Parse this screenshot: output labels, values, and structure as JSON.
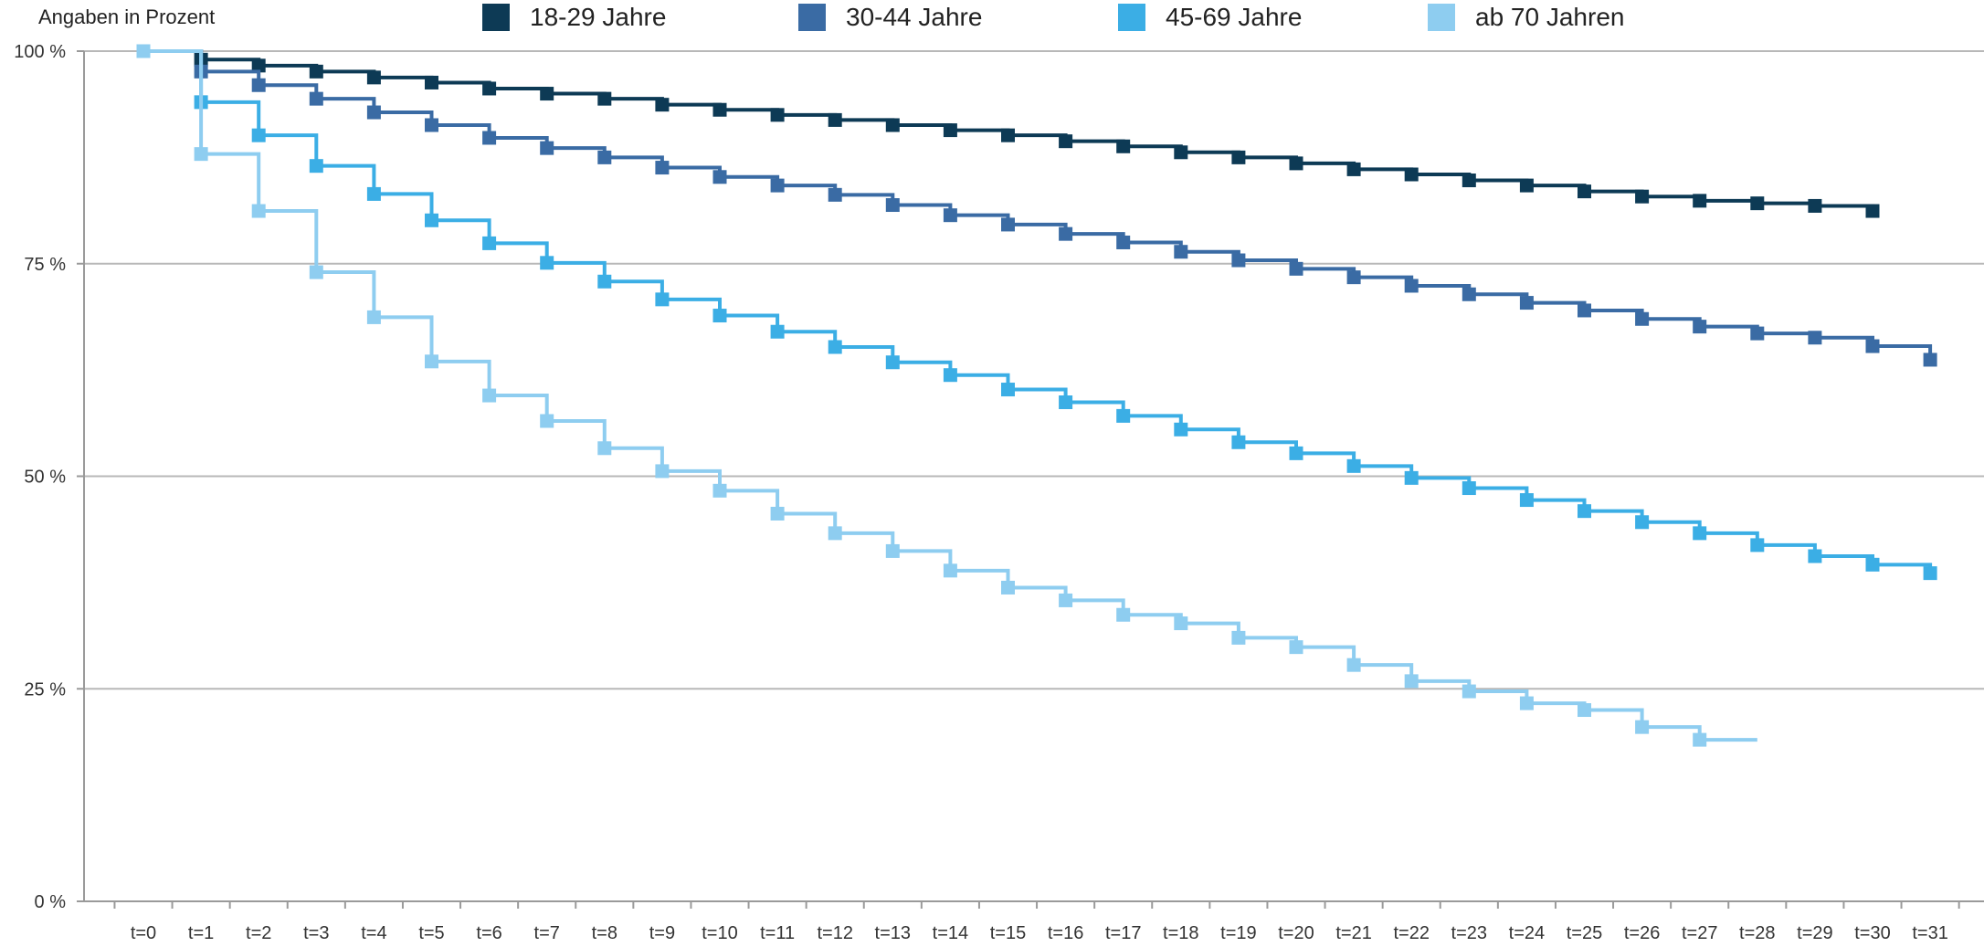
{
  "chart_data": {
    "type": "line",
    "subtitle": "Angaben in Prozent",
    "x_categories": [
      "t=0",
      "t=1",
      "t=2",
      "t=3",
      "t=4",
      "t=5",
      "t=6",
      "t=7",
      "t=8",
      "t=9",
      "t=10",
      "t=11",
      "t=12",
      "t=13",
      "t=14",
      "t=15",
      "t=16",
      "t=17",
      "t=18",
      "t=19",
      "t=20",
      "t=21",
      "t=22",
      "t=23",
      "t=24",
      "t=25",
      "t=26",
      "t=27",
      "t=28",
      "t=29",
      "t=30",
      "t=31"
    ],
    "y_ticks": [
      {
        "value": 0,
        "label": "0 %"
      },
      {
        "value": 25,
        "label": "25 %"
      },
      {
        "value": 50,
        "label": "50 %"
      },
      {
        "value": 75,
        "label": "75 %"
      },
      {
        "value": 100,
        "label": "100 %"
      }
    ],
    "ylim": [
      0,
      100
    ],
    "grid": true,
    "legend_position": "top",
    "step": true,
    "series": [
      {
        "name": "18-29 Jahre",
        "color": "#0d3a55",
        "values": [
          100,
          99.0,
          98.3,
          97.6,
          96.9,
          96.3,
          95.6,
          95.0,
          94.4,
          93.7,
          93.1,
          92.5,
          91.9,
          91.3,
          90.7,
          90.1,
          89.4,
          88.8,
          88.1,
          87.5,
          86.8,
          86.1,
          85.5,
          84.8,
          84.2,
          83.5,
          82.9,
          82.4,
          82.1,
          81.8,
          81.2,
          null
        ]
      },
      {
        "name": "30-44 Jahre",
        "color": "#3a6ba4",
        "values": [
          100,
          97.6,
          96.0,
          94.4,
          92.8,
          91.3,
          89.8,
          88.6,
          87.5,
          86.3,
          85.2,
          84.2,
          83.1,
          81.9,
          80.7,
          79.6,
          78.5,
          77.5,
          76.4,
          75.4,
          74.4,
          73.4,
          72.4,
          71.4,
          70.4,
          69.5,
          68.5,
          67.6,
          66.8,
          66.3,
          65.3,
          63.7
        ]
      },
      {
        "name": "45-69 Jahre",
        "color": "#3baee5",
        "values": [
          100,
          94.0,
          90.1,
          86.5,
          83.2,
          80.1,
          77.4,
          75.1,
          72.9,
          70.8,
          68.9,
          67.0,
          65.2,
          63.4,
          61.9,
          60.2,
          58.7,
          57.1,
          55.5,
          54.0,
          52.7,
          51.2,
          49.8,
          48.6,
          47.2,
          45.9,
          44.6,
          43.3,
          41.9,
          40.6,
          39.6,
          38.6
        ]
      },
      {
        "name": "ab 70 Jahren",
        "color": "#8ecdf0",
        "values": [
          100,
          87.9,
          81.2,
          74.0,
          68.7,
          63.5,
          59.5,
          56.5,
          53.3,
          50.6,
          48.3,
          45.6,
          43.3,
          41.2,
          38.9,
          36.9,
          35.4,
          33.7,
          32.7,
          31.0,
          29.9,
          27.8,
          25.9,
          24.7,
          23.3,
          22.5,
          20.5,
          19.0,
          null,
          null,
          null,
          null
        ],
        "end_x_index": 28
      }
    ]
  }
}
